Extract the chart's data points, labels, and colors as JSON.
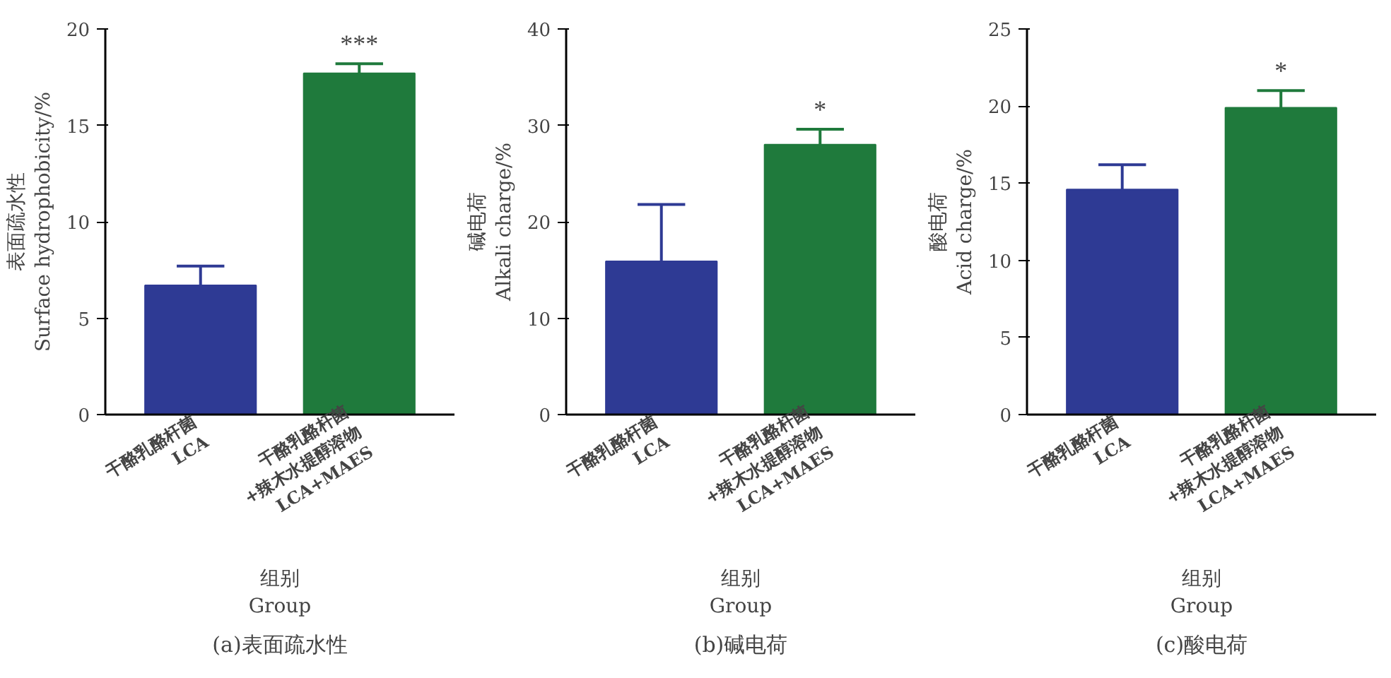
{
  "chart_data": [
    {
      "type": "bar",
      "ylabel": "表面疏水性\nSurface hydrophobicity/%",
      "xlabel": "组别\nGroup",
      "categories": [
        "干酪乳酪杆菌\nLCA",
        "干酪乳酪杆菌\n+辣木水提醇溶物\nLCA+MAES"
      ],
      "values": [
        6.7,
        17.7
      ],
      "errors": [
        1.0,
        0.5
      ],
      "colors": [
        "#2e3a94",
        "#1f7a3c"
      ],
      "ylim": [
        0,
        20
      ],
      "yticks": [
        0,
        5,
        10,
        15,
        20
      ],
      "grid": false,
      "annotations": [
        "***",
        "(a)表面疏水性"
      ]
    },
    {
      "type": "bar",
      "ylabel": "碱电荷\nAlkali charge/%",
      "xlabel": "组别\nGroup",
      "categories": [
        "干酪乳酪杆菌\nLCA",
        "干酪乳酪杆菌\n+辣木水提醇溶物\nLCA+MAES"
      ],
      "values": [
        15.9,
        28.0
      ],
      "errors": [
        5.9,
        1.6
      ],
      "colors": [
        "#2e3a94",
        "#1f7a3c"
      ],
      "ylim": [
        0,
        40
      ],
      "yticks": [
        0,
        10,
        20,
        30,
        40
      ],
      "grid": false,
      "annotations": [
        "*",
        "(b)碱电荷"
      ]
    },
    {
      "type": "bar",
      "ylabel": "酸电荷\nAcid charge/%",
      "xlabel": "组别\nGroup",
      "categories": [
        "干酪乳酪杆菌\nLCA",
        "干酪乳酪杆菌\n+辣木水提醇溶物\nLCA+MAES"
      ],
      "values": [
        14.6,
        19.9
      ],
      "errors": [
        1.6,
        1.1
      ],
      "colors": [
        "#2e3a94",
        "#1f7a3c"
      ],
      "ylim": [
        0,
        25
      ],
      "yticks": [
        0,
        5,
        10,
        15,
        20,
        25
      ],
      "grid": false,
      "annotations": [
        "*",
        "(c)酸电荷"
      ]
    }
  ]
}
